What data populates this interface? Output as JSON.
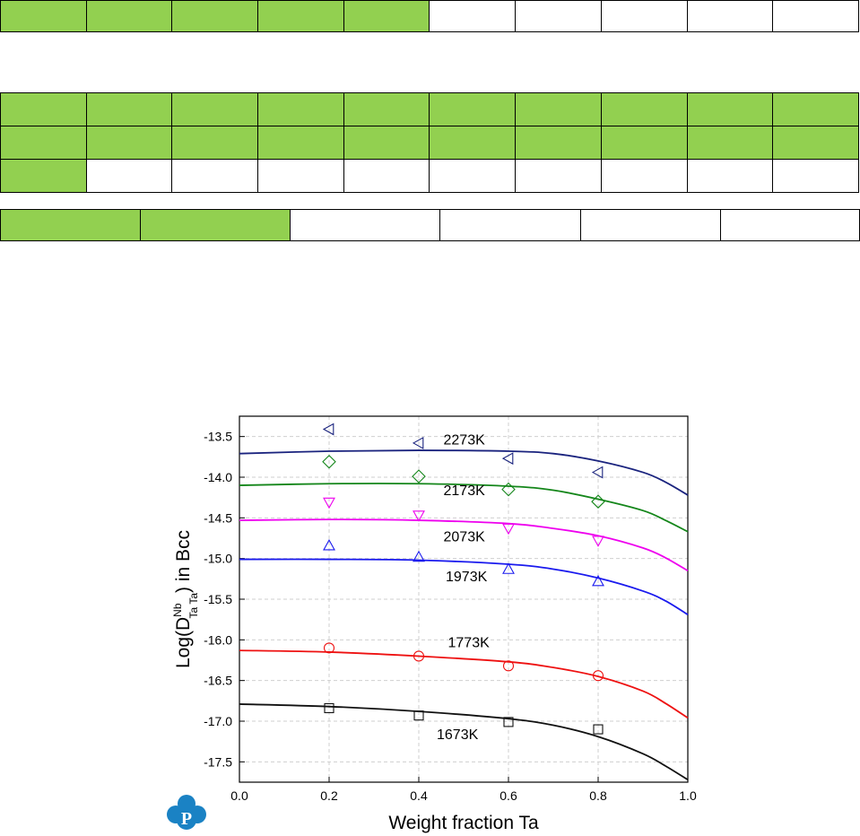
{
  "grid_strips": {
    "strip1": {
      "cells": 10,
      "green_count": 5
    },
    "strip2": {
      "rows": 3,
      "cells_per_row": 10,
      "green_cells": 21
    },
    "strip3": {
      "cells": 6,
      "green_count": 2
    }
  },
  "colors": {
    "green_cell": "#92d050",
    "logo_blue": "#1a82c4"
  },
  "logo": {
    "letter": "P"
  },
  "chart_data": {
    "type": "scatter",
    "xlabel": "Weight fraction Ta",
    "ylabel": "Log(D Nb Ta Ta ) in Bcc",
    "ylabel_parts": {
      "pre": "Log(D",
      "sup": "Nb",
      "sub": "Ta Ta",
      "post": ") in Bcc"
    },
    "xlim": [
      0.0,
      1.0
    ],
    "ylim": [
      -17.75,
      -13.25
    ],
    "xticks": [
      "0.0",
      "0.2",
      "0.4",
      "0.6",
      "0.8",
      "1.0"
    ],
    "yticks": [
      "-13.5",
      "-14.0",
      "-14.5",
      "-15.0",
      "-15.5",
      "-16.0",
      "-16.5",
      "-17.0",
      "-17.5"
    ],
    "grid": true,
    "series": [
      {
        "name": "2273K",
        "color": "#1a237e",
        "marker": "triangle-left",
        "points": {
          "x": [
            0.2,
            0.4,
            0.6,
            0.8
          ],
          "y": [
            -13.41,
            -13.58,
            -13.77,
            -13.94
          ]
        },
        "curve": {
          "x": [
            0.0,
            0.2,
            0.4,
            0.6,
            0.7,
            0.8,
            0.9,
            0.95,
            1.0
          ],
          "y": [
            -13.71,
            -13.68,
            -13.67,
            -13.68,
            -13.71,
            -13.8,
            -13.94,
            -14.06,
            -14.22
          ]
        }
      },
      {
        "name": "2173K",
        "color": "#14861a",
        "marker": "diamond",
        "points": {
          "x": [
            0.2,
            0.4,
            0.6,
            0.8
          ],
          "y": [
            -13.81,
            -13.99,
            -14.15,
            -14.3
          ]
        },
        "curve": {
          "x": [
            0.0,
            0.2,
            0.4,
            0.6,
            0.7,
            0.8,
            0.9,
            0.95,
            1.0
          ],
          "y": [
            -14.1,
            -14.08,
            -14.08,
            -14.11,
            -14.16,
            -14.27,
            -14.41,
            -14.53,
            -14.67
          ]
        }
      },
      {
        "name": "2073K",
        "color": "#ee00ee",
        "marker": "triangle-down",
        "points": {
          "x": [
            0.2,
            0.4,
            0.6,
            0.8
          ],
          "y": [
            -14.31,
            -14.47,
            -14.63,
            -14.78
          ]
        },
        "curve": {
          "x": [
            0.0,
            0.2,
            0.4,
            0.6,
            0.7,
            0.8,
            0.9,
            0.95,
            1.0
          ],
          "y": [
            -14.53,
            -14.52,
            -14.53,
            -14.57,
            -14.63,
            -14.72,
            -14.87,
            -14.99,
            -15.15
          ]
        }
      },
      {
        "name": "1973K",
        "color": "#1a1aee",
        "marker": "triangle-up",
        "points": {
          "x": [
            0.2,
            0.4,
            0.6,
            0.8
          ],
          "y": [
            -14.84,
            -14.98,
            -15.13,
            -15.28
          ]
        },
        "curve": {
          "x": [
            0.0,
            0.2,
            0.4,
            0.6,
            0.7,
            0.8,
            0.9,
            0.95,
            1.0
          ],
          "y": [
            -15.01,
            -15.01,
            -15.02,
            -15.07,
            -15.13,
            -15.24,
            -15.4,
            -15.52,
            -15.69
          ]
        }
      },
      {
        "name": "1773K",
        "color": "#ee1111",
        "marker": "circle",
        "points": {
          "x": [
            0.2,
            0.4,
            0.6,
            0.8
          ],
          "y": [
            -16.1,
            -16.2,
            -16.32,
            -16.44
          ]
        },
        "curve": {
          "x": [
            0.0,
            0.2,
            0.4,
            0.6,
            0.7,
            0.8,
            0.9,
            0.95,
            1.0
          ],
          "y": [
            -16.13,
            -16.15,
            -16.2,
            -16.27,
            -16.34,
            -16.45,
            -16.63,
            -16.78,
            -16.96
          ]
        }
      },
      {
        "name": "1673K",
        "color": "#111111",
        "marker": "square",
        "points": {
          "x": [
            0.2,
            0.4,
            0.6,
            0.8
          ],
          "y": [
            -16.84,
            -16.93,
            -17.01,
            -17.1
          ]
        },
        "curve": {
          "x": [
            0.0,
            0.2,
            0.4,
            0.6,
            0.7,
            0.8,
            0.9,
            0.95,
            1.0
          ],
          "y": [
            -16.79,
            -16.82,
            -16.88,
            -16.97,
            -17.05,
            -17.19,
            -17.4,
            -17.55,
            -17.72
          ]
        }
      }
    ]
  }
}
